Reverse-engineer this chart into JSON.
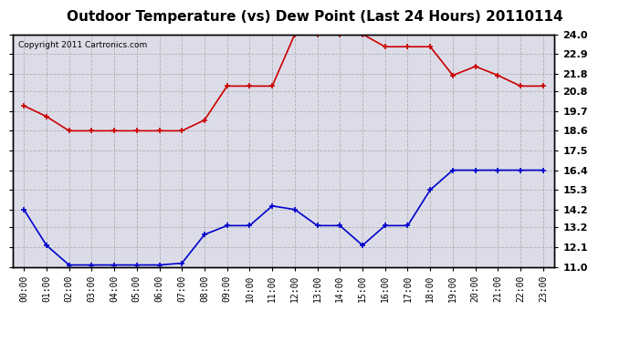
{
  "title": "Outdoor Temperature (vs) Dew Point (Last 24 Hours) 20110114",
  "copyright": "Copyright 2011 Cartronics.com",
  "x_labels": [
    "00:00",
    "01:00",
    "02:00",
    "03:00",
    "04:00",
    "05:00",
    "06:00",
    "07:00",
    "08:00",
    "09:00",
    "10:00",
    "11:00",
    "12:00",
    "13:00",
    "14:00",
    "15:00",
    "16:00",
    "17:00",
    "18:00",
    "19:00",
    "20:00",
    "21:00",
    "22:00",
    "23:00"
  ],
  "temp_data": [
    20.0,
    19.4,
    18.6,
    18.6,
    18.6,
    18.6,
    18.6,
    18.6,
    19.2,
    21.1,
    21.1,
    21.1,
    24.0,
    24.0,
    24.0,
    24.0,
    23.3,
    23.3,
    23.3,
    21.7,
    22.2,
    21.7,
    21.1,
    21.1
  ],
  "dew_data": [
    14.2,
    12.2,
    11.1,
    11.1,
    11.1,
    11.1,
    11.1,
    11.2,
    12.8,
    13.3,
    13.3,
    14.4,
    14.2,
    13.3,
    13.3,
    12.2,
    13.3,
    13.3,
    15.3,
    16.4,
    16.4,
    16.4,
    16.4,
    16.4
  ],
  "temp_color": "#cc0000",
  "dew_color": "#0000cc",
  "background_color": "#ffffff",
  "plot_bg_color": "#dcdce8",
  "grid_color": "#aaaaaa",
  "ylim": [
    11.0,
    24.0
  ],
  "yticks": [
    11.0,
    12.1,
    13.2,
    14.2,
    15.3,
    16.4,
    17.5,
    18.6,
    19.7,
    20.8,
    21.8,
    22.9,
    24.0
  ],
  "title_fontsize": 11,
  "copyright_fontsize": 6.5,
  "tick_fontsize": 8,
  "xtick_fontsize": 7
}
